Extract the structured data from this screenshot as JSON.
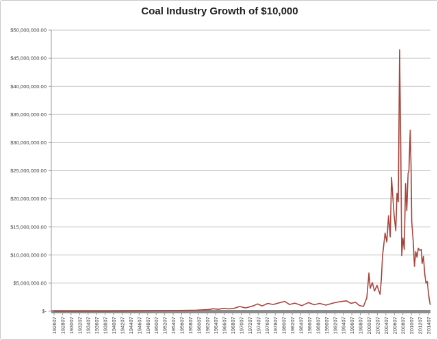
{
  "chart_data": {
    "type": "line",
    "title": "Coal Industry Growth of $10,000",
    "xlabel": "",
    "ylabel": "",
    "legend": "none",
    "grid": "horizontal",
    "ylim": [
      0,
      50000000
    ],
    "y_tick_interval": 5000000,
    "y_tick_labels_top_to_bottom": [
      "$50,000,000.00",
      "$45,000,000.00",
      "$40,000,000.00",
      "$35,000,000.00",
      "$30,000,000.00",
      "$25,000,000.00",
      "$20,000,000.00",
      "$15,000,000.00",
      "$10,000,000.00",
      "$5,000,000.00",
      "$-"
    ],
    "x_tick_labels": [
      "192607",
      "192807",
      "193007",
      "193207",
      "193407",
      "193607",
      "193807",
      "194007",
      "194207",
      "194407",
      "194607",
      "194807",
      "195007",
      "195207",
      "195407",
      "195607",
      "195807",
      "196007",
      "196207",
      "196407",
      "196607",
      "196807",
      "197007",
      "197207",
      "197407",
      "197607",
      "197807",
      "198007",
      "198207",
      "198407",
      "198607",
      "198807",
      "199007",
      "199207",
      "199407",
      "199607",
      "199807",
      "200007",
      "200207",
      "200407",
      "200607",
      "200807",
      "201007",
      "201207",
      "201407"
    ],
    "x_tick_start_year": 1926.58,
    "x_tick_step_years": 2,
    "value_unit": "USD millions",
    "series_color": "#a8443c",
    "gridline_color": "#c6c6c6",
    "axis_bar_color": "#8c8c8c",
    "points": [
      [
        1926.6,
        0.01
      ],
      [
        1930.0,
        0.015
      ],
      [
        1932.5,
        0.008
      ],
      [
        1936.0,
        0.02
      ],
      [
        1940.0,
        0.03
      ],
      [
        1944.0,
        0.05
      ],
      [
        1948.0,
        0.09
      ],
      [
        1952.0,
        0.1
      ],
      [
        1956.0,
        0.14
      ],
      [
        1960.0,
        0.2
      ],
      [
        1963.0,
        0.32
      ],
      [
        1964.0,
        0.45
      ],
      [
        1965.2,
        0.35
      ],
      [
        1966.5,
        0.52
      ],
      [
        1967.5,
        0.42
      ],
      [
        1968.7,
        0.48
      ],
      [
        1970.2,
        0.85
      ],
      [
        1971.6,
        0.6
      ],
      [
        1972.7,
        0.82
      ],
      [
        1973.5,
        1.0
      ],
      [
        1974.4,
        1.3
      ],
      [
        1975.5,
        0.95
      ],
      [
        1976.8,
        1.4
      ],
      [
        1978.1,
        1.2
      ],
      [
        1979.7,
        1.55
      ],
      [
        1980.8,
        1.75
      ],
      [
        1981.9,
        1.2
      ],
      [
        1983.2,
        1.45
      ],
      [
        1984.8,
        1.0
      ],
      [
        1986.4,
        1.55
      ],
      [
        1987.7,
        1.15
      ],
      [
        1989.0,
        1.4
      ],
      [
        1990.5,
        1.1
      ],
      [
        1992.1,
        1.45
      ],
      [
        1993.7,
        1.7
      ],
      [
        1995.3,
        1.85
      ],
      [
        1996.4,
        1.4
      ],
      [
        1997.4,
        1.6
      ],
      [
        1998.3,
        1.05
      ],
      [
        1999.3,
        0.85
      ],
      [
        2000.1,
        2.4
      ],
      [
        2000.6,
        6.8
      ],
      [
        2000.9,
        4.1
      ],
      [
        2001.4,
        5.1
      ],
      [
        2001.9,
        3.6
      ],
      [
        2002.5,
        4.6
      ],
      [
        2003.2,
        3.0
      ],
      [
        2003.5,
        5.5
      ],
      [
        2003.8,
        9.9
      ],
      [
        2004.4,
        13.9
      ],
      [
        2004.8,
        12.3
      ],
      [
        2005.2,
        17.0
      ],
      [
        2005.6,
        13.2
      ],
      [
        2005.9,
        23.8
      ],
      [
        2006.2,
        20.5
      ],
      [
        2006.5,
        17.2
      ],
      [
        2006.9,
        14.3
      ],
      [
        2007.2,
        21.0
      ],
      [
        2007.5,
        19.5
      ],
      [
        2007.8,
        46.5
      ],
      [
        2008.1,
        28.0
      ],
      [
        2008.3,
        9.9
      ],
      [
        2008.6,
        13.0
      ],
      [
        2008.9,
        11.0
      ],
      [
        2009.2,
        22.7
      ],
      [
        2009.5,
        17.9
      ],
      [
        2009.8,
        24.5
      ],
      [
        2010.0,
        25.0
      ],
      [
        2010.3,
        32.2
      ],
      [
        2010.5,
        26.0
      ],
      [
        2010.65,
        16.0
      ],
      [
        2011.0,
        12.4
      ],
      [
        2011.3,
        8.0
      ],
      [
        2011.6,
        10.6
      ],
      [
        2011.9,
        9.6
      ],
      [
        2012.2,
        11.2
      ],
      [
        2012.6,
        10.8
      ],
      [
        2012.9,
        11.0
      ],
      [
        2013.1,
        8.5
      ],
      [
        2013.4,
        9.8
      ],
      [
        2013.7,
        6.8
      ],
      [
        2014.0,
        5.0
      ],
      [
        2014.3,
        5.3
      ],
      [
        2014.6,
        3.2
      ],
      [
        2014.8,
        2.0
      ],
      [
        2015.0,
        1.2
      ]
    ]
  }
}
